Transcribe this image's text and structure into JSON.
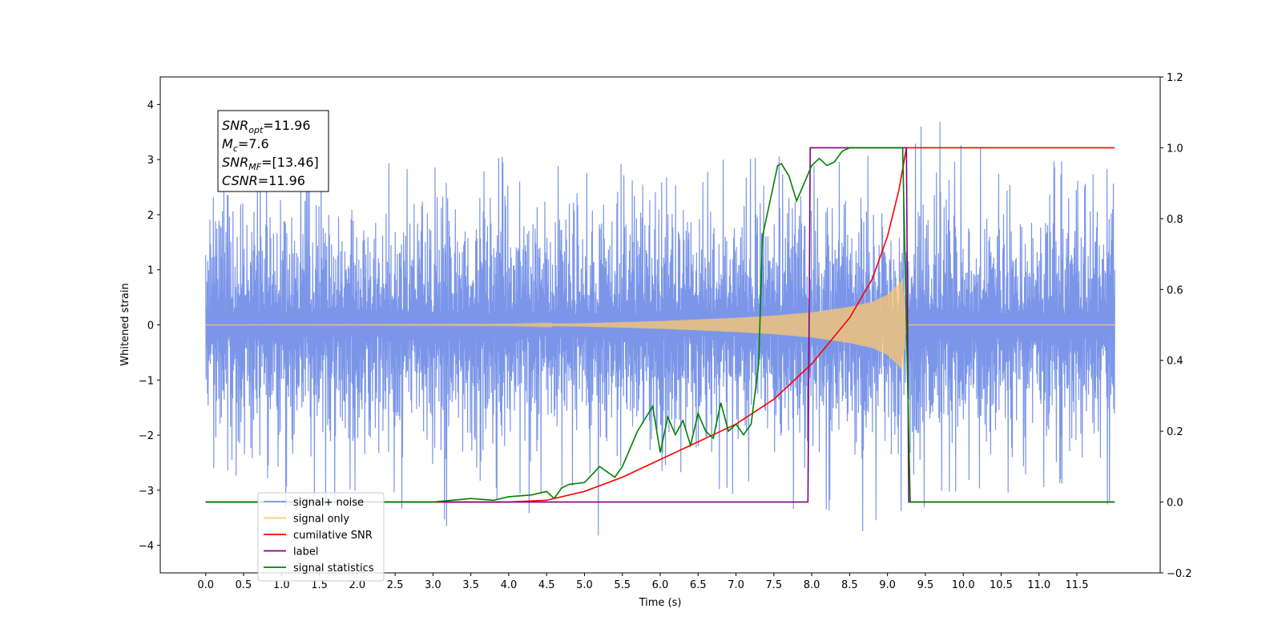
{
  "chart_data": {
    "type": "line",
    "title": "",
    "xlabel": "Time (s)",
    "ylabel": "Whitened strain",
    "xlim": [
      -0.6,
      12.6
    ],
    "ylim": [
      -4.5,
      4.5
    ],
    "y2lim": [
      -0.2,
      1.2
    ],
    "x_ticks": [
      0.0,
      0.5,
      1.0,
      1.5,
      2.0,
      2.5,
      3.0,
      3.5,
      4.0,
      4.5,
      5.0,
      5.5,
      6.0,
      6.5,
      7.0,
      7.5,
      8.0,
      8.5,
      9.0,
      9.5,
      10.0,
      10.5,
      11.0,
      11.5
    ],
    "x_tick_labels": [
      "0.0",
      "0.5",
      "1.0",
      "1.5",
      "2.0",
      "2.5",
      "3.0",
      "3.5",
      "4.0",
      "4.5",
      "5.0",
      "5.5",
      "6.0",
      "6.5",
      "7.0",
      "7.5",
      "8.0",
      "8.5",
      "9.0",
      "9.5",
      "10.0",
      "10.5",
      "11.0",
      "11.5"
    ],
    "y_ticks": [
      4,
      3,
      2,
      1,
      0,
      -1,
      -2,
      -3,
      -4
    ],
    "y_tick_labels": [
      "4",
      "3",
      "2",
      "1",
      "0",
      "−1",
      "−2",
      "−3",
      "−4"
    ],
    "y2_ticks": [
      1.2,
      1.0,
      0.8,
      0.6,
      0.4,
      0.2,
      0.0,
      -0.2
    ],
    "y2_tick_labels": [
      "1.2",
      "1.0",
      "0.8",
      "0.6",
      "0.4",
      "0.2",
      "0.0",
      "−0.2"
    ],
    "grid": false,
    "legend_position": "bottom-left",
    "annotation": {
      "lines": [
        {
          "sym": "SNR",
          "sub": "opt",
          "val": "=11.96"
        },
        {
          "sym": "M",
          "sub": "c",
          "val": "=7.6"
        },
        {
          "sym": "SNR",
          "sub": "MF",
          "val": "=[13.46]"
        },
        {
          "sym": "CSNR",
          "sub": "",
          "val": "=11.96"
        }
      ]
    },
    "noise_envelope": {
      "x": [
        0,
        1,
        2,
        3,
        4,
        5,
        6,
        7,
        8,
        9,
        10,
        11,
        12
      ],
      "upper": [
        2.5,
        3.3,
        3.3,
        3.0,
        3.2,
        3.0,
        3.0,
        3.0,
        3.1,
        4.0,
        3.6,
        3.0,
        2.9
      ],
      "lower": [
        -3.0,
        -3.3,
        -3.5,
        -4.1,
        -3.2,
        -4.1,
        -3.0,
        -3.2,
        -3.4,
        -4.0,
        -3.3,
        -3.1,
        -3.5
      ]
    },
    "signal_envelope": {
      "x": [
        0,
        4,
        5,
        6,
        7,
        7.5,
        8,
        8.5,
        8.8,
        9.0,
        9.15,
        9.2,
        9.25
      ],
      "amp": [
        0.0,
        0.01,
        0.03,
        0.07,
        0.13,
        0.17,
        0.23,
        0.33,
        0.42,
        0.55,
        0.75,
        0.85,
        0.0
      ]
    },
    "series": [
      {
        "name": "signal+ noise",
        "color": "#7b96e8"
      },
      {
        "name": "signal only",
        "color": "#ffc86e"
      },
      {
        "name": "cumilative SNR",
        "color": "#ff0000",
        "axis": "right",
        "x": [
          0,
          4.0,
          4.5,
          5.0,
          5.5,
          6.0,
          6.5,
          7.0,
          7.5,
          8.0,
          8.5,
          8.8,
          9.0,
          9.15,
          9.25,
          9.25,
          12.0
        ],
        "y": [
          0,
          0,
          0.005,
          0.03,
          0.07,
          0.12,
          0.17,
          0.22,
          0.29,
          0.39,
          0.52,
          0.63,
          0.75,
          0.88,
          1.0,
          1.0,
          1.0
        ]
      },
      {
        "name": "label",
        "color": "#800080",
        "axis": "right",
        "x": [
          0,
          7.95,
          7.98,
          9.25,
          9.28,
          12.0
        ],
        "y": [
          0,
          0,
          1.0,
          1.0,
          0,
          0
        ]
      },
      {
        "name": "signal statistics",
        "color": "#008000",
        "axis": "right",
        "x": [
          0,
          3.0,
          3.5,
          3.8,
          4.0,
          4.3,
          4.5,
          4.6,
          4.7,
          4.8,
          5.0,
          5.2,
          5.4,
          5.5,
          5.7,
          5.9,
          6.0,
          6.1,
          6.2,
          6.3,
          6.4,
          6.5,
          6.6,
          6.7,
          6.8,
          6.9,
          7.0,
          7.1,
          7.2,
          7.3,
          7.35,
          7.45,
          7.55,
          7.6,
          7.7,
          7.8,
          7.9,
          8.0,
          8.1,
          8.2,
          8.3,
          8.4,
          8.5,
          8.7,
          9.0,
          9.2,
          9.3,
          12.0
        ],
        "y": [
          0,
          0.0,
          0.01,
          0.005,
          0.015,
          0.02,
          0.03,
          0.01,
          0.04,
          0.05,
          0.055,
          0.1,
          0.07,
          0.1,
          0.2,
          0.27,
          0.14,
          0.24,
          0.19,
          0.23,
          0.16,
          0.25,
          0.2,
          0.18,
          0.28,
          0.2,
          0.22,
          0.19,
          0.22,
          0.39,
          0.75,
          0.85,
          0.95,
          0.955,
          0.92,
          0.85,
          0.9,
          0.95,
          0.97,
          0.95,
          0.96,
          0.99,
          1.0,
          1.0,
          1.0,
          1.0,
          0.0,
          0.0
        ]
      }
    ]
  }
}
